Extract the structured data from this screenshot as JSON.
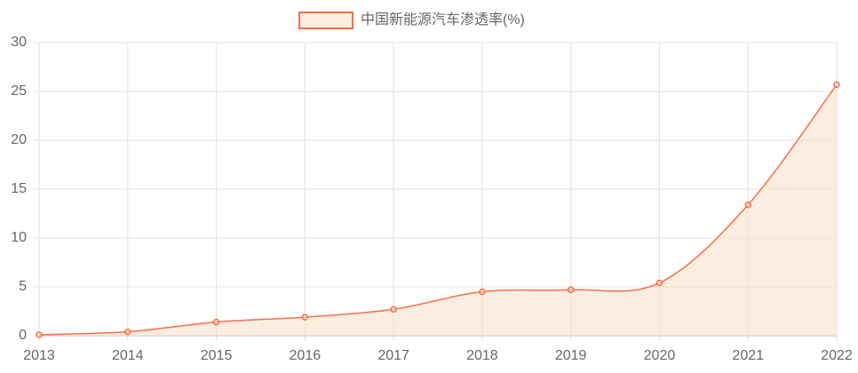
{
  "chart_data": {
    "type": "line",
    "categories": [
      "2013",
      "2014",
      "2015",
      "2016",
      "2017",
      "2018",
      "2019",
      "2020",
      "2021",
      "2022"
    ],
    "series": [
      {
        "name": "中国新能源汽车渗透率(%)",
        "color": "#f4704b",
        "fill": "rgba(250,225,205,0.6)",
        "values": [
          0.1,
          0.4,
          1.4,
          1.9,
          2.7,
          4.5,
          4.7,
          5.4,
          13.4,
          25.7
        ]
      }
    ],
    "ylim": [
      0,
      30
    ],
    "yticks": [
      0,
      5,
      10,
      15,
      20,
      25,
      30
    ],
    "grid": true,
    "legend": "top"
  }
}
